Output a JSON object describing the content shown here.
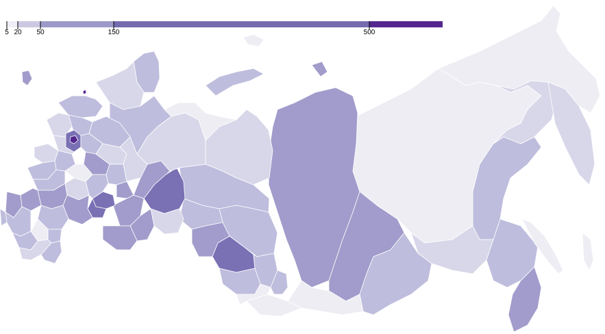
{
  "legend": {
    "ticks": [
      {
        "label": "5",
        "value": 5
      },
      {
        "label": "20",
        "value": 20
      },
      {
        "label": "50",
        "value": 50
      },
      {
        "label": "150",
        "value": 150
      },
      {
        "label": "500",
        "value": 500
      }
    ],
    "bins": [
      {
        "from": 5,
        "to": 20,
        "color": "#efedf5"
      },
      {
        "from": 20,
        "to": 50,
        "color": "#cbc9e2"
      },
      {
        "from": 50,
        "to": 150,
        "color": "#9e9ac8"
      },
      {
        "from": 150,
        "to": 500,
        "color": "#756bb1"
      },
      {
        "from": 500,
        "to": 1000,
        "color": "#54278f"
      }
    ]
  },
  "map_colors": {
    "lightest": "#eeedf4",
    "light": "#d8d7e9",
    "pale": "#bfbddd",
    "medium": "#a19ccb",
    "dark": "#7a70b4",
    "darkest": "#54278f",
    "border": "#ffffff"
  }
}
